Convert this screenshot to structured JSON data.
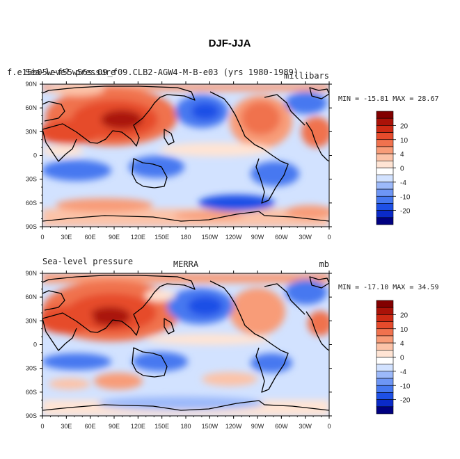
{
  "figure_title": "DJF-JJA",
  "colors": {
    "levels": [
      "#000080",
      "#0a2ac8",
      "#1e50e6",
      "#4678f0",
      "#6e96f5",
      "#9cb9fa",
      "#d2e2ff",
      "#ffffff",
      "#ffe4d4",
      "#fcc3a8",
      "#f89c78",
      "#f0724e",
      "#e64b2c",
      "#cd2a14",
      "#aa1208",
      "#820000"
    ]
  },
  "chart_data": [
    {
      "type": "heatmap",
      "left_title": "f.e15b05w-f55w56s.09_f09.CLB2-AGW4-M-B-e03 (yrs 1980-1989)",
      "left_title_overprint": "Sea-level pressure",
      "center_title": "",
      "units": "millibars",
      "stats": "MIN = -15.81 MAX =  28.67",
      "min": -15.81,
      "max": 28.67,
      "x_ticks": [
        "0",
        "30E",
        "60E",
        "90E",
        "120E",
        "150E",
        "180",
        "150W",
        "120W",
        "90W",
        "60W",
        "30W",
        "0"
      ],
      "y_ticks": [
        "90N",
        "60N",
        "30N",
        "0",
        "30S",
        "60S",
        "90S"
      ],
      "colorbar_labels": [
        "20",
        "10",
        "4",
        "0",
        "-4",
        "-10",
        "-20"
      ]
    },
    {
      "type": "heatmap",
      "left_title": "Sea-level pressure",
      "center_title": "MERRA",
      "units": "mb",
      "stats": "MIN = -17.10 MAX =  34.59",
      "min": -17.1,
      "max": 34.59,
      "x_ticks": [
        "0",
        "30E",
        "60E",
        "90E",
        "120E",
        "150E",
        "180",
        "150W",
        "120W",
        "90W",
        "60W",
        "30W",
        "0"
      ],
      "y_ticks": [
        "90N",
        "60N",
        "30N",
        "0",
        "30S",
        "60S",
        "90S"
      ],
      "colorbar_labels": [
        "20",
        "10",
        "4",
        "0",
        "-4",
        "-10",
        "-20"
      ]
    }
  ]
}
